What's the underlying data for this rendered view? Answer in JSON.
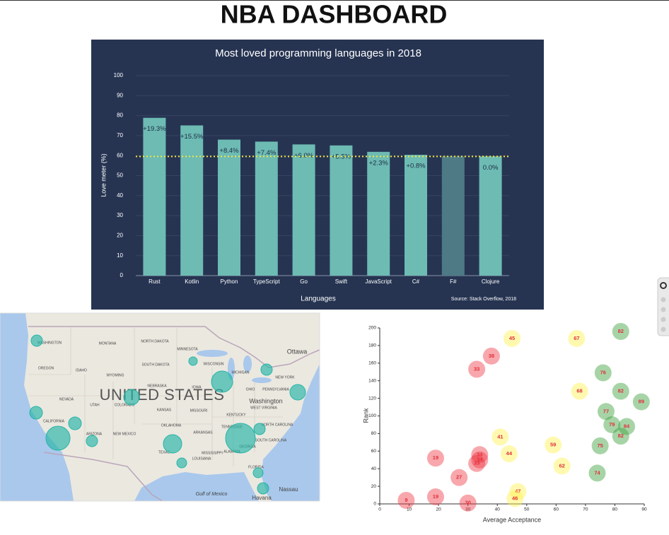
{
  "header": {
    "title": "NBA DASHBOARD"
  },
  "chart_data": [
    {
      "type": "bar",
      "title": "Most loved programming languages in 2018",
      "x_label": "Languages",
      "y_label": "Love meter (%)",
      "source": "Source: Stack Overflow, 2018",
      "categories": [
        "Rust",
        "Kotlin",
        "Python",
        "TypeScript",
        "Go",
        "Swift",
        "JavaScript",
        "C#",
        "F#",
        "Clojure"
      ],
      "values": [
        78.9,
        75.1,
        68.0,
        67.0,
        65.6,
        65.1,
        61.9,
        60.4,
        59.6,
        59.6
      ],
      "change_labels": [
        "+19.3%",
        "+15.5%",
        "+8.4%",
        "+7.4%",
        "+6.0%",
        "+5.5%",
        "+2.3%",
        "+0.8%",
        null,
        "0.0%"
      ],
      "colors": [
        "#6dbbb3",
        "#6dbbb3",
        "#6dbbb3",
        "#6dbbb3",
        "#6dbbb3",
        "#6dbbb3",
        "#6dbbb3",
        "#6dbbb3",
        "#4d7a85",
        "#6dbbb3"
      ],
      "reference_line": 59.6,
      "reference_color": "#f5e642",
      "background": "#263452",
      "ylim": [
        0,
        100
      ],
      "yticks": [
        0,
        10,
        20,
        30,
        40,
        50,
        60,
        70,
        80,
        90,
        100
      ],
      "grid": true
    },
    {
      "type": "bubble-map",
      "place_labels": [
        "UNITED STATES",
        "WASHINGTON",
        "MONTANA",
        "NORTH DAKOTA",
        "MINNESOTA",
        "OREGON",
        "IDAHO",
        "SOUTH DAKOTA",
        "WISCONSIN",
        "WYOMING",
        "MICHIGAN",
        "NEBRASKA",
        "IOWA",
        "NEVADA",
        "UTAH",
        "COLORADO",
        "KANSAS",
        "MISSOURI",
        "OHIO",
        "PENNSYLVANIA",
        "NEW YORK",
        "CALIFORNIA",
        "ARIZONA",
        "NEW MEXICO",
        "OKLAHOMA",
        "ARKANSAS",
        "TENNESSEE",
        "KENTUCKY",
        "WEST VIRGINIA",
        "NORTH CAROLINA",
        "SOUTH CAROLINA",
        "GEORGIA",
        "ALABAMA",
        "MISSISSIPPI",
        "LOUISIANA",
        "TEXAS",
        "FLORIDA",
        "Ottawa",
        "Washington",
        "Gulf of Mexico",
        "Nassau",
        "Havana"
      ],
      "bubbles": {
        "color": "#26b5a8",
        "values": [
          8,
          6,
          15,
          8,
          11,
          11,
          9,
          9,
          17,
          8,
          13,
          7,
          21,
          8,
          7,
          8
        ]
      }
    },
    {
      "type": "scatter",
      "x_label": "Average Acceptance",
      "y_label": "Rank",
      "label_color": "#e0303a",
      "series": [
        {
          "color": "#f03c46",
          "x": [
            38,
            33,
            34,
            34,
            33,
            19,
            27,
            19,
            9,
            30
          ],
          "y": [
            168,
            153,
            56,
            50,
            46,
            52,
            30,
            8,
            4,
            1
          ],
          "labels": [
            38,
            33,
            34,
            34,
            33,
            19,
            27,
            19,
            9,
            30
          ]
        },
        {
          "color": "#fff250",
          "x": [
            45,
            67,
            68,
            41,
            59,
            44,
            62,
            47,
            46
          ],
          "y": [
            188,
            188,
            128,
            76,
            67,
            57,
            43,
            14,
            6
          ],
          "labels": [
            45,
            67,
            68,
            41,
            59,
            44,
            62,
            47,
            46
          ]
        },
        {
          "color": "#3c9f3c",
          "x": [
            82,
            76,
            82,
            89,
            77,
            79,
            84,
            82,
            75,
            74
          ],
          "y": [
            196,
            149,
            128,
            116,
            105,
            90,
            88,
            77,
            66,
            35
          ],
          "labels": [
            82,
            76,
            82,
            89,
            77,
            79,
            84,
            82,
            75,
            74
          ]
        }
      ],
      "xlim": [
        0,
        90
      ],
      "xticks": [
        0,
        10,
        20,
        30,
        40,
        50,
        60,
        70,
        80,
        90
      ],
      "ylim": [
        0,
        200
      ],
      "yticks": [
        0,
        20,
        40,
        60,
        80,
        100,
        120,
        140,
        160,
        180,
        200
      ]
    }
  ]
}
